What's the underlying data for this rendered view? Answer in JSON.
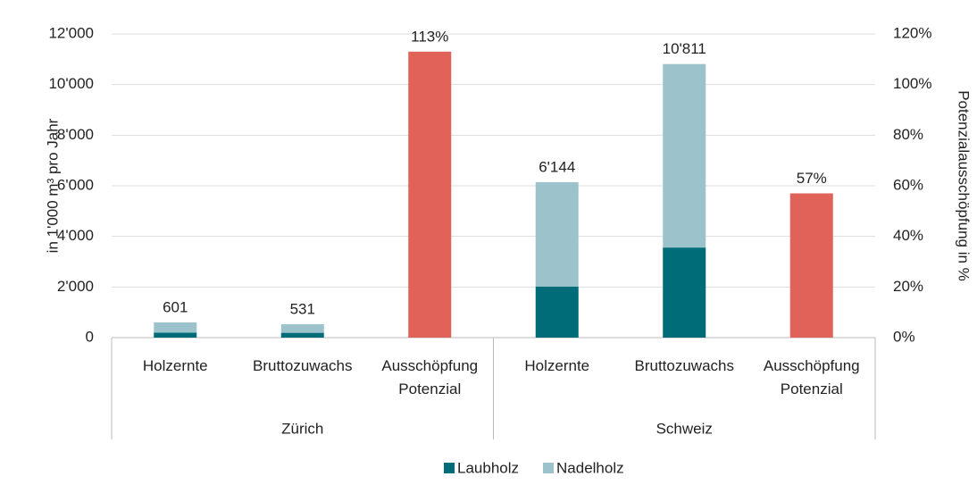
{
  "chart_data": {
    "type": "bar",
    "categories": [
      "Holzernte",
      "Bruttozuwachs",
      "Ausschöpfung Potenzial",
      "Holzernte",
      "Bruttozuwachs",
      "Ausschöpfung Potenzial"
    ],
    "groups": [
      "Zürich",
      "Schweiz"
    ],
    "series": [
      {
        "name": "Laubholz",
        "color": "#006c78",
        "values": [
          200,
          190,
          null,
          2020,
          3560,
          null
        ]
      },
      {
        "name": "Nadelholz",
        "color": "#9cc3cb",
        "values": [
          401,
          341,
          null,
          4124,
          7251,
          null
        ]
      },
      {
        "color": "#e06259",
        "axis": "y2",
        "values": [
          null,
          null,
          113,
          null,
          null,
          57
        ],
        "value_labels": [
          null,
          null,
          "113%",
          null,
          null,
          "57%"
        ]
      }
    ],
    "totals": [
      601,
      531,
      null,
      6144,
      10811,
      null
    ],
    "total_labels": [
      "601",
      "531",
      null,
      "6'144",
      "10'811",
      null
    ],
    "ylabel": "in 1'000 m³ pro Jahr",
    "y2label": "Potenzialausschöpfung in %",
    "ylim": [
      0,
      12000
    ],
    "yticks": [
      0,
      {
        "value": 2000,
        "label": "2'000"
      },
      {
        "value": 4000,
        "label": "4'000"
      },
      {
        "value": 6000,
        "label": "6'000"
      },
      {
        "value": 8000,
        "label": "8'000"
      },
      {
        "value": 10000,
        "label": "10'000"
      },
      {
        "value": 12000,
        "label": "12'000"
      }
    ],
    "y2lim": [
      0,
      120
    ],
    "y2ticks": [
      {
        "value": 0,
        "label": "0%"
      },
      {
        "value": 20,
        "label": "20%"
      },
      {
        "value": 40,
        "label": "40%"
      },
      {
        "value": 60,
        "label": "60%"
      },
      {
        "value": 80,
        "label": "80%"
      },
      {
        "value": 100,
        "label": "100%"
      },
      {
        "value": 120,
        "label": "120%"
      }
    ],
    "grid": true,
    "legend": "bottom"
  }
}
